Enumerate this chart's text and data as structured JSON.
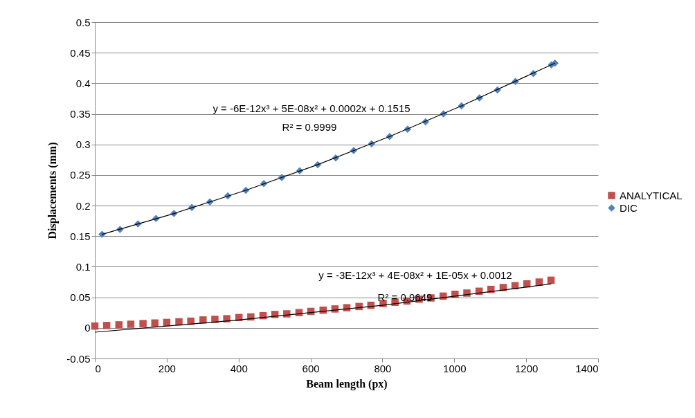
{
  "chart_data": {
    "type": "scatter",
    "xlabel": "Beam length (px)",
    "ylabel": "Displacements  (mm)",
    "xlim": [
      0,
      1400
    ],
    "xticks": [
      0,
      200,
      400,
      600,
      800,
      1000,
      1200,
      1400
    ],
    "ylim": [
      -0.05,
      0.5
    ],
    "yticks": [
      -0.05,
      0,
      0.05,
      0.1,
      0.15,
      0.2,
      0.25,
      0.3,
      0.35,
      0.4,
      0.45,
      0.5
    ],
    "grid": "y",
    "legend": "right",
    "series": [
      {
        "name": "ANALYTICAL",
        "color": "#c0504d",
        "marker": "square",
        "x": [
          0,
          33,
          67,
          100,
          134,
          167,
          200,
          234,
          267,
          301,
          334,
          367,
          401,
          434,
          468,
          501,
          534,
          568,
          601,
          635,
          668,
          701,
          735,
          768,
          802,
          835,
          868,
          902,
          935,
          969,
          1002,
          1035,
          1069,
          1102,
          1136,
          1169,
          1202,
          1236,
          1269
        ],
        "values": [
          0.003,
          0.004,
          0.005,
          0.006,
          0.007,
          0.008,
          0.009,
          0.01,
          0.011,
          0.013,
          0.014,
          0.015,
          0.017,
          0.018,
          0.02,
          0.022,
          0.023,
          0.025,
          0.027,
          0.029,
          0.031,
          0.033,
          0.035,
          0.037,
          0.04,
          0.042,
          0.044,
          0.047,
          0.049,
          0.052,
          0.055,
          0.057,
          0.06,
          0.063,
          0.066,
          0.069,
          0.072,
          0.075,
          0.078
        ]
      },
      {
        "name": "DIC",
        "color": "#4f81bd",
        "marker": "diamond",
        "x": [
          20,
          70,
          120,
          170,
          220,
          270,
          320,
          370,
          420,
          470,
          520,
          570,
          620,
          670,
          720,
          770,
          820,
          870,
          920,
          970,
          1020,
          1070,
          1120,
          1170,
          1220,
          1270,
          1280
        ],
        "values": [
          0.153,
          0.161,
          0.17,
          0.179,
          0.187,
          0.197,
          0.206,
          0.216,
          0.225,
          0.236,
          0.246,
          0.257,
          0.267,
          0.278,
          0.29,
          0.301,
          0.313,
          0.325,
          0.337,
          0.35,
          0.363,
          0.376,
          0.389,
          0.403,
          0.416,
          0.43,
          0.433
        ]
      },
      {
        "type": "line",
        "color": "#000000",
        "x": [
          0,
          400,
          800,
          1270
        ],
        "values": [
          -0.007,
          0.013,
          0.037,
          0.072
        ]
      },
      {
        "type": "line",
        "color": "#000000",
        "x": [
          20,
          220,
          420,
          620,
          820,
          1020,
          1280
        ],
        "values": [
          0.153,
          0.187,
          0.225,
          0.267,
          0.313,
          0.363,
          0.433
        ]
      }
    ],
    "annotations": [
      "y = -6E-12x³ + 5E-08x² + 0.0002x + 0.1515",
      "R² = 0.9999",
      "y = -3E-12x³ + 4E-08x² + 1E-05x + 0.0012",
      "R² = 0.9649"
    ]
  }
}
